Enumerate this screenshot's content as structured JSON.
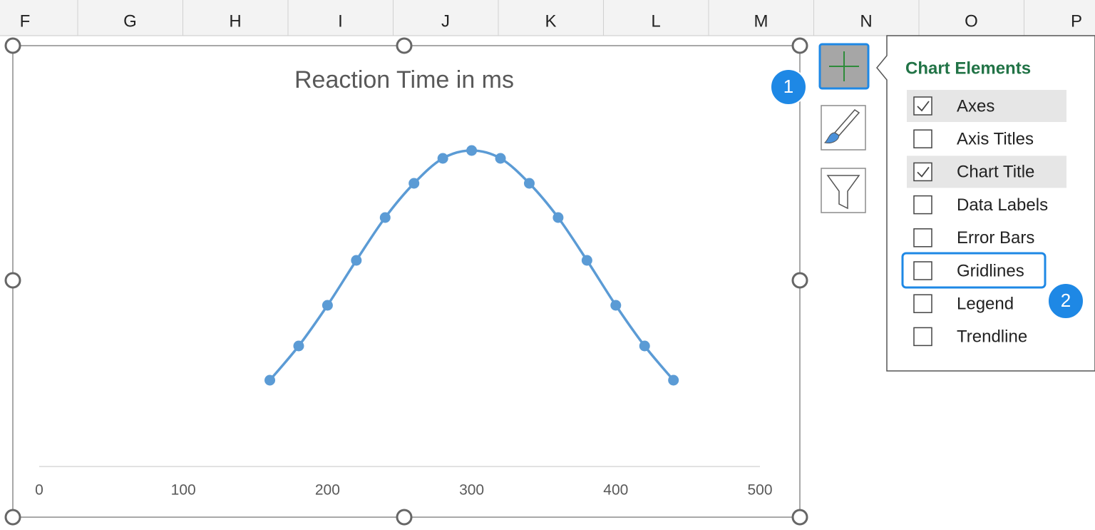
{
  "column_headers": [
    "F",
    "G",
    "H",
    "I",
    "J",
    "K",
    "L",
    "M",
    "N",
    "O",
    "P"
  ],
  "chart_data": {
    "type": "line",
    "smooth": true,
    "markers": true,
    "title": "Reaction Time in ms",
    "x": [
      160,
      180,
      200,
      220,
      240,
      260,
      280,
      300,
      320,
      340,
      360,
      380,
      400,
      420,
      440
    ],
    "values": [
      0.00121,
      0.00169,
      0.00226,
      0.00289,
      0.00349,
      0.00397,
      0.00432,
      0.00443,
      0.00432,
      0.00397,
      0.00349,
      0.00289,
      0.00226,
      0.00169,
      0.00121
    ],
    "color": "#5b9bd5",
    "xlim": [
      0,
      500
    ],
    "xticks": [
      0,
      100,
      200,
      300,
      400,
      500
    ],
    "ylim": [
      0,
      0.005
    ]
  },
  "chart_elements": {
    "title": "Chart Elements",
    "items": [
      {
        "label": "Axes",
        "checked": true
      },
      {
        "label": "Axis Titles",
        "checked": false
      },
      {
        "label": "Chart Title",
        "checked": true
      },
      {
        "label": "Data Labels",
        "checked": false
      },
      {
        "label": "Error Bars",
        "checked": false
      },
      {
        "label": "Gridlines",
        "checked": false
      },
      {
        "label": "Legend",
        "checked": false
      },
      {
        "label": "Trendline",
        "checked": false
      }
    ]
  },
  "callouts": [
    "1",
    "2"
  ]
}
